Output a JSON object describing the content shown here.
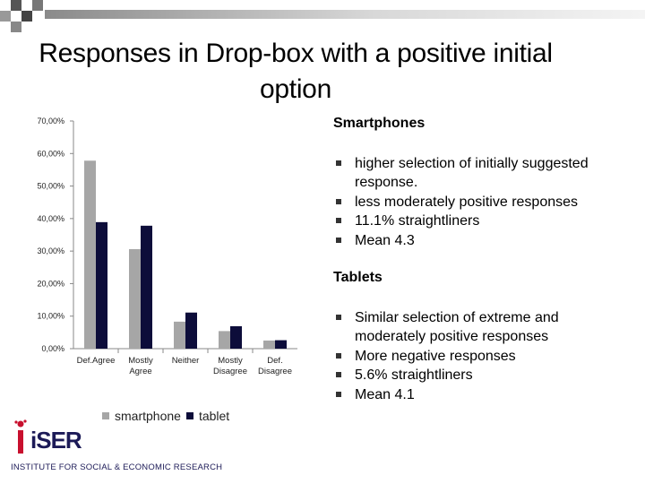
{
  "slide": {
    "title": "Responses in Drop-box with a positive initial option"
  },
  "colors": {
    "smartphone": "#a6a6a6",
    "tablet": "#0d0d3a",
    "logo_red": "#c8102e",
    "logo_navy": "#1c1a57"
  },
  "chart_data": {
    "type": "bar",
    "categories": [
      "Def.Agree",
      "Mostly Agree",
      "Neither",
      "Mostly Disagree",
      "Def. Disagree"
    ],
    "series": [
      {
        "name": "smartphone",
        "values": [
          57.8,
          30.6,
          8.3,
          5.4,
          2.5
        ]
      },
      {
        "name": "tablet",
        "values": [
          38.9,
          37.8,
          11.1,
          6.9,
          2.6
        ]
      }
    ],
    "yticks": [
      "0,00%",
      "10,00%",
      "20,00%",
      "30,00%",
      "40,00%",
      "50,00%",
      "60,00%",
      "70,00%"
    ],
    "ylim": [
      0,
      70
    ],
    "legend": "bottom"
  },
  "notes": {
    "smartphones": {
      "heading": "Smartphones",
      "bullets": [
        "higher selection of initially suggested response.",
        "less moderately positive responses",
        "11.1% straightliners",
        "Mean 4.3"
      ]
    },
    "tablets": {
      "heading": "Tablets",
      "bullets": [
        "Similar selection of extreme and moderately positive responses",
        "More negative responses",
        "5.6% straightliners",
        "Mean 4.1"
      ]
    }
  },
  "logo": {
    "name": "iSER",
    "tagline": "INSTITUTE FOR SOCIAL & ECONOMIC RESEARCH"
  }
}
